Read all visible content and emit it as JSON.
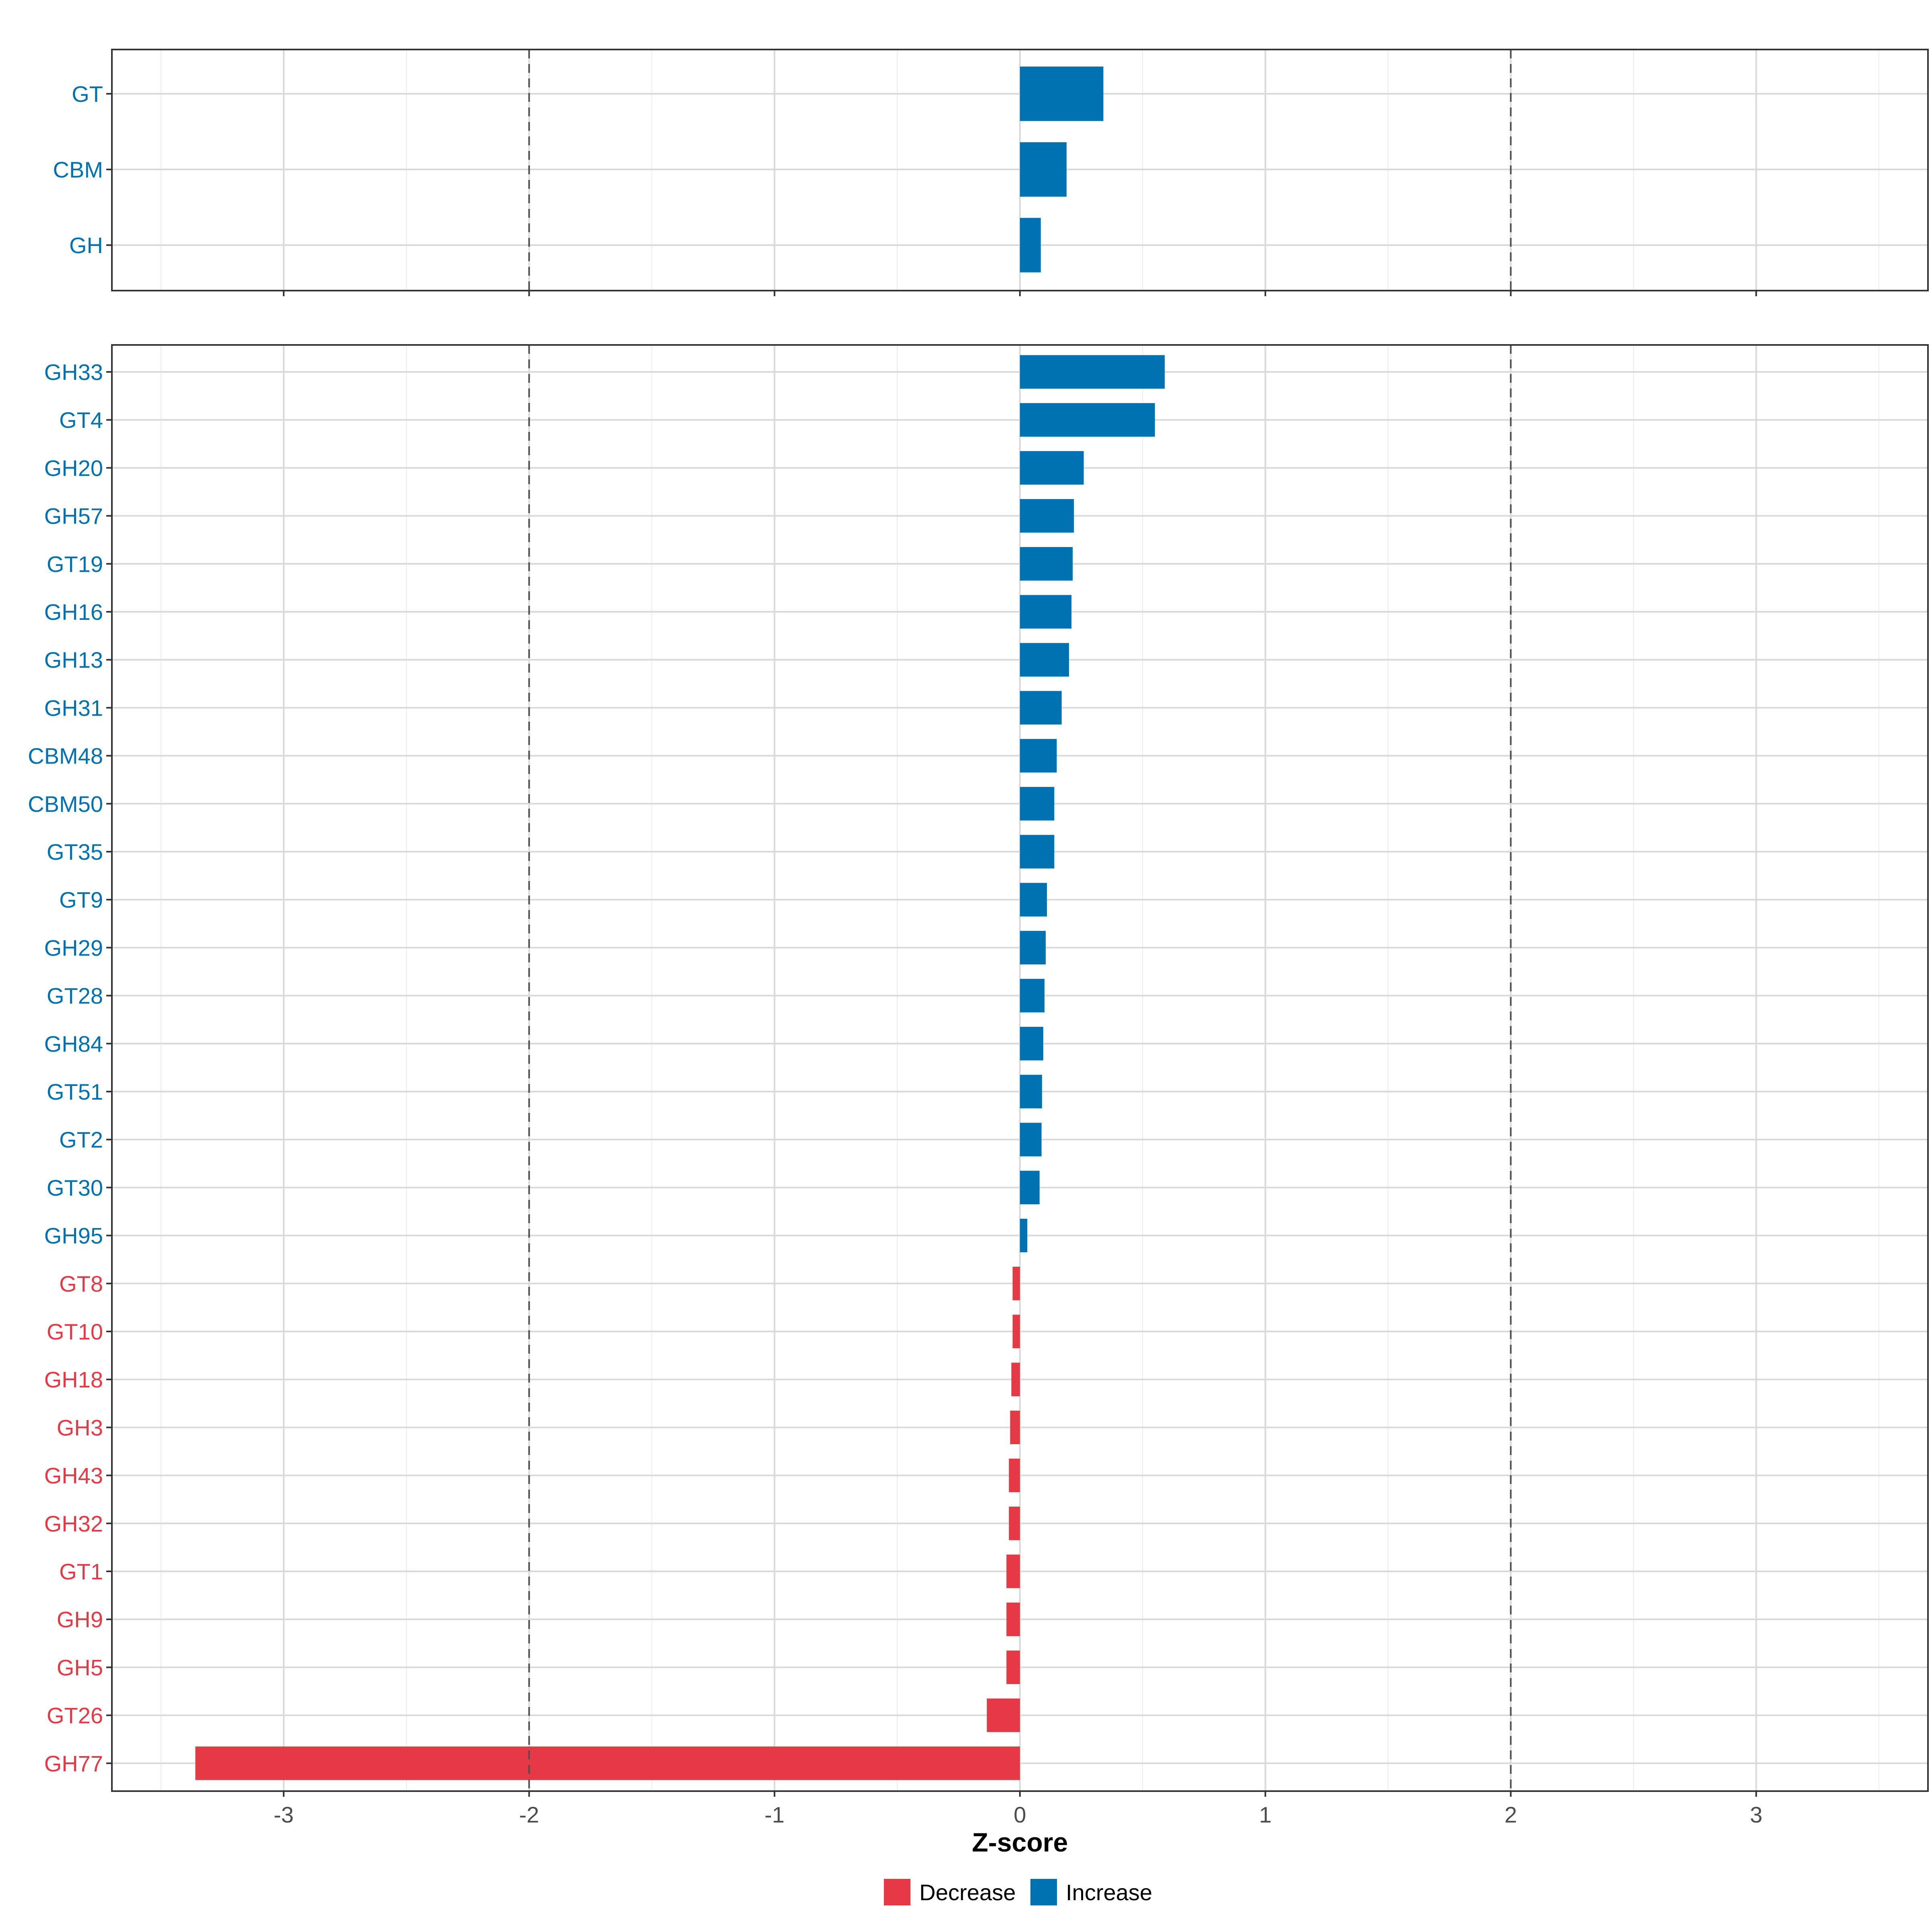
{
  "chart_data": {
    "type": "bar",
    "orientation": "horizontal",
    "xlabel": "Z-score",
    "xlim": [
      -3.7,
      3.7
    ],
    "xticks": [
      -3,
      -2,
      -1,
      0,
      1,
      2,
      3
    ],
    "reference_lines": [
      -2,
      2
    ],
    "grid": true,
    "legend": {
      "placement": "bottom",
      "entries": [
        {
          "label": "Decrease",
          "color": "#E63946"
        },
        {
          "label": "Increase",
          "color": "#0072B2"
        }
      ]
    },
    "colors": {
      "Decrease": "#E63946",
      "Increase": "#0072B2"
    },
    "panels": [
      {
        "categories": [
          "GT",
          "CBM",
          "GH"
        ],
        "values": [
          0.34,
          0.19,
          0.085
        ],
        "direction": [
          "Increase",
          "Increase",
          "Increase"
        ]
      },
      {
        "categories": [
          "GH33",
          "GT4",
          "GH20",
          "GH57",
          "GT19",
          "GH16",
          "GH13",
          "GH31",
          "CBM48",
          "CBM50",
          "GT35",
          "GT9",
          "GH29",
          "GT28",
          "GH84",
          "GT51",
          "GT2",
          "GT30",
          "GH95",
          "GT8",
          "GT10",
          "GH18",
          "GH3",
          "GH43",
          "GH32",
          "GT1",
          "GH9",
          "GH5",
          "GT26",
          "GH77"
        ],
        "values": [
          0.59,
          0.55,
          0.26,
          0.22,
          0.215,
          0.21,
          0.2,
          0.17,
          0.15,
          0.14,
          0.14,
          0.11,
          0.105,
          0.1,
          0.095,
          0.09,
          0.088,
          0.08,
          0.03,
          -0.03,
          -0.03,
          -0.035,
          -0.04,
          -0.045,
          -0.045,
          -0.055,
          -0.055,
          -0.055,
          -0.135,
          -3.36
        ],
        "direction": [
          "Increase",
          "Increase",
          "Increase",
          "Increase",
          "Increase",
          "Increase",
          "Increase",
          "Increase",
          "Increase",
          "Increase",
          "Increase",
          "Increase",
          "Increase",
          "Increase",
          "Increase",
          "Increase",
          "Increase",
          "Increase",
          "Increase",
          "Decrease",
          "Decrease",
          "Decrease",
          "Decrease",
          "Decrease",
          "Decrease",
          "Decrease",
          "Decrease",
          "Decrease",
          "Decrease",
          "Decrease"
        ]
      }
    ]
  }
}
